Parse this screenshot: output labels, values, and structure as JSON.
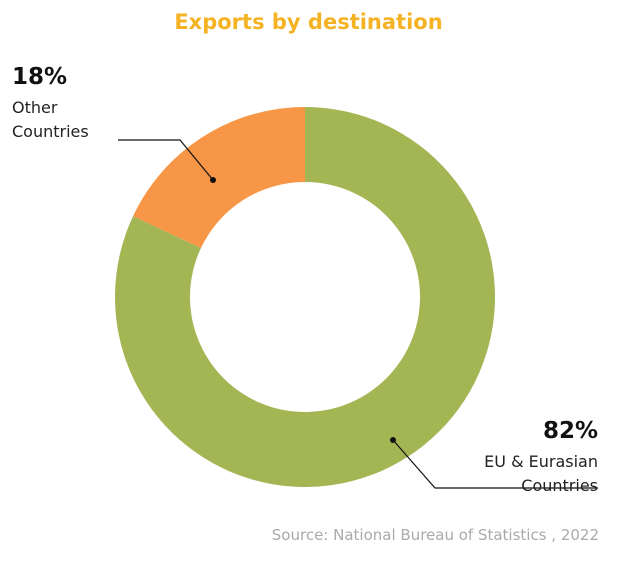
{
  "chart_data": {
    "type": "donut",
    "title": "Exports by destination",
    "categories": [
      "EU & Eurasian Countries",
      "Other Countries"
    ],
    "values": [
      82,
      18
    ],
    "value_labels": [
      "82%",
      "18%"
    ],
    "colors": [
      "#a4b554",
      "#f79646"
    ],
    "source": "Source: National Bureau of Statistics , 2022"
  }
}
